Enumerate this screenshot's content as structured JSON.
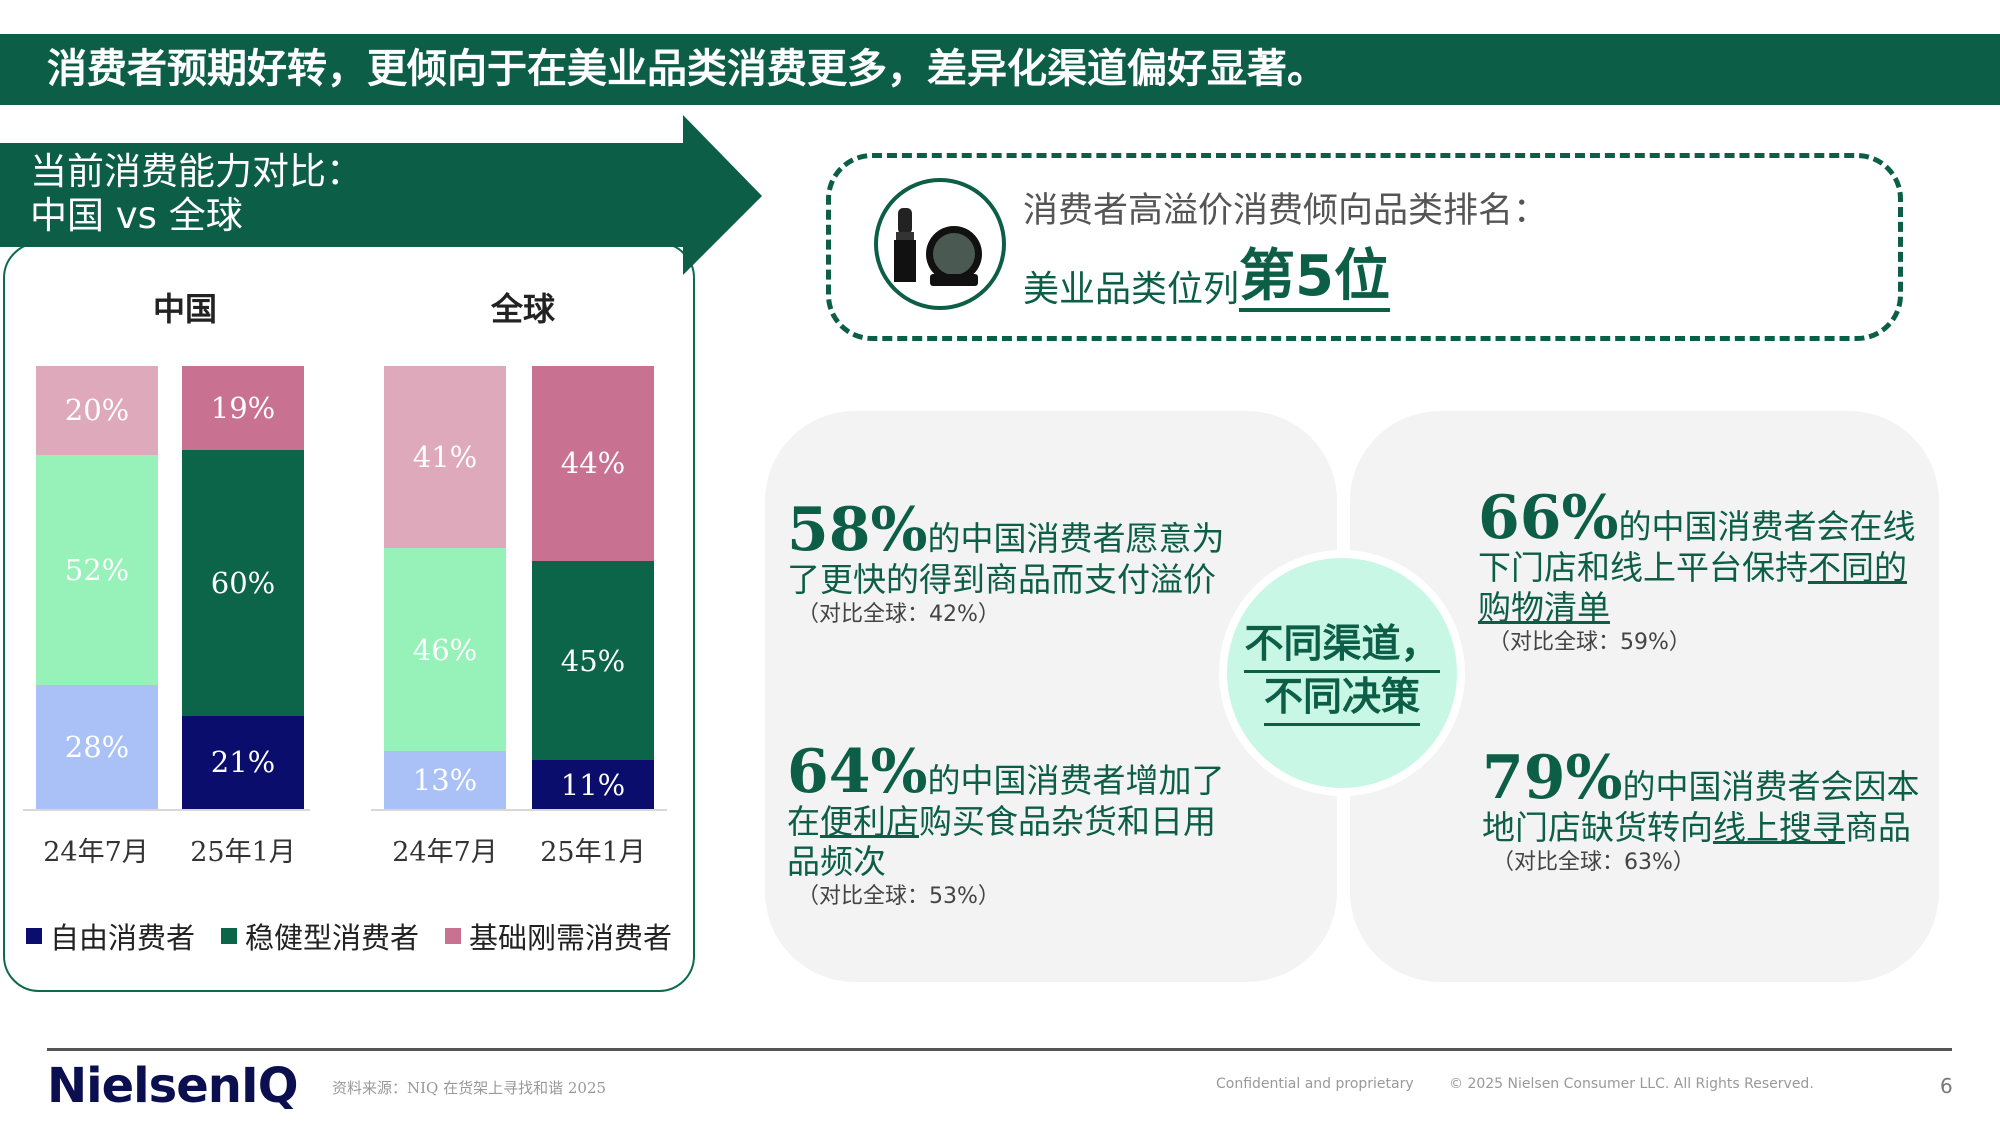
{
  "title": "消费者预期好转，更倾向于在美业品类消费更多，差异化渠道偏好显著。",
  "left_panel": {
    "heading_line1": "当前消费能力对比：",
    "heading_line2": "中国 vs 全球"
  },
  "chart_data": {
    "type": "bar",
    "stacked": true,
    "groups": [
      {
        "title": "中国",
        "categories": [
          "24年7月",
          "25年1月"
        ],
        "series": [
          {
            "name": "自由消费者",
            "values": [
              28,
              21
            ]
          },
          {
            "name": "稳健型消费者",
            "values": [
              52,
              60
            ]
          },
          {
            "name": "基础刚需消费者",
            "values": [
              20,
              19
            ]
          }
        ]
      },
      {
        "title": "全球",
        "categories": [
          "24年7月",
          "25年1月"
        ],
        "series": [
          {
            "name": "自由消费者",
            "values": [
              13,
              11
            ]
          },
          {
            "name": "稳健型消费者",
            "values": [
              46,
              45
            ]
          },
          {
            "name": "基础刚需消费者",
            "values": [
              41,
              44
            ]
          }
        ]
      }
    ],
    "value_format": "%",
    "colors": {
      "24年7月": [
        "#a9c1f7",
        "#97f2b9",
        "#dfa9bc"
      ],
      "25年1月": [
        "#0a0d6b",
        "#0c6449",
        "#c97191"
      ]
    },
    "legend": {
      "placement": "bottom",
      "entries": [
        "自由消费者",
        "稳健型消费者",
        "基础刚需消费者"
      ],
      "colors": [
        "#0a0d6b",
        "#0c6449",
        "#c97191"
      ]
    }
  },
  "ranking": {
    "line1": "消费者高溢价消费倾向品类排名：",
    "line2_prefix": "美业品类位列",
    "line2_highlight": "第5位",
    "icon": "cosmetics-lipstick-compact-icon"
  },
  "center": {
    "line1": "不同渠道，",
    "line2": "不同决策"
  },
  "quadrants": {
    "q1": {
      "pct": "58%",
      "line1": "的中国消费者愿意为",
      "line2": "了更快的得到商品而支付溢价",
      "note": "（对比全球：42%）"
    },
    "q2": {
      "pct": "66%",
      "line1": "的中国消费者会在线",
      "line2a": "下门店和线上平台保持",
      "line2u": "不同的",
      "line3u": "购物清单",
      "note": "（对比全球：59%）"
    },
    "q3": {
      "pct": "64%",
      "line1": "的中国消费者增加了",
      "line2a": "在",
      "line2u": "便利店",
      "line2b": "购买食品杂货和日用",
      "line3": "品频次",
      "note": "（对比全球：53%）"
    },
    "q4": {
      "pct": "79%",
      "line1": "的中国消费者会因本",
      "line2a": "地门店缺货转向",
      "line2u": "线上搜寻",
      "line2b": "商品",
      "note": "（对比全球：63%）"
    }
  },
  "footer": {
    "logo": "NielsenIQ",
    "source": "资料来源：NIQ 在货架上寻找和谐 2025",
    "confidential": "Confidential and proprietary",
    "copyright": "© 2025 Nielsen Consumer LLC. All Rights Reserved.",
    "page": "6"
  },
  "colors": {
    "brand_green": "#0d5e46",
    "navy": "#0b0f4f"
  }
}
